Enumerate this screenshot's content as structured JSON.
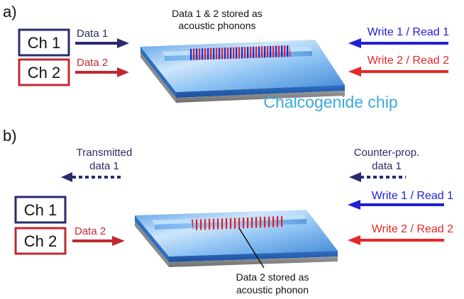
{
  "panel_a": {
    "label": "a)",
    "channels": [
      "Ch 1",
      "Ch 2"
    ],
    "input_labels": [
      "Data 1",
      "Data 2"
    ],
    "storage_note": [
      "Data 1 & 2 stored as",
      "acoustic phonons"
    ],
    "write_read": [
      "Write 1 / Read 1",
      "Write 2 / Read 2"
    ],
    "chip_label": "Chalcogenide chip"
  },
  "panel_b": {
    "label": "b)",
    "transmitted": [
      "Transmitted",
      "data 1"
    ],
    "counter_prop": [
      "Counter-prop.",
      "data 1"
    ],
    "channels": [
      "Ch 1",
      "Ch 2"
    ],
    "input_label": "Data 2",
    "write_read": [
      "Write 1 / Read 1",
      "Write 2 / Read 2"
    ],
    "storage_note": [
      "Data 2 stored as",
      "acoustic phonon"
    ]
  },
  "colors": {
    "ch1": "#2b2a6e",
    "ch2": "#c0282f",
    "write1": "#1f1fd6",
    "write2": "#e62828",
    "chip_text": "#3aa9df"
  }
}
